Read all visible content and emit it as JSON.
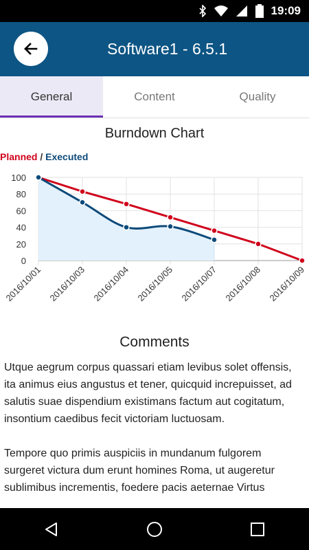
{
  "status_bar": {
    "time": "19:09",
    "icons": [
      "bluetooth-icon",
      "wifi-icon",
      "signal-icon",
      "battery-icon"
    ]
  },
  "app_bar": {
    "title": "Software1 - 6.5.1",
    "back_icon": "arrow-left-icon",
    "color": "#0d5584"
  },
  "tabs": [
    {
      "label": "General",
      "active": true
    },
    {
      "label": "Content",
      "active": false
    },
    {
      "label": "Quality",
      "active": false
    }
  ],
  "chart_data": {
    "type": "line",
    "title": "Burndown Chart",
    "x": [
      "2016/10/01",
      "2016/10/03",
      "2016/10/04",
      "2016/10/05",
      "2016/10/07",
      "2016/10/08",
      "2016/10/09"
    ],
    "series": [
      {
        "name": "Planned",
        "color": "#d0021b",
        "values": [
          100,
          83,
          68,
          52,
          36,
          20,
          0
        ]
      },
      {
        "name": "Executed",
        "color": "#0d4a7a",
        "values": [
          100,
          70,
          40,
          41,
          25,
          null,
          null
        ]
      }
    ],
    "ylim": [
      0,
      100
    ],
    "yticks": [
      0,
      20,
      40,
      60,
      80,
      100
    ],
    "grid": true,
    "legend": {
      "planned": "Planned",
      "separator": " / ",
      "executed": "Executed",
      "placement": "top-left"
    }
  },
  "comments": {
    "title": "Comments",
    "paragraphs": [
      "Utque aegrum corpus quassari etiam levibus solet offensis, ita animus eius angustus et tener, quicquid increpuisset, ad salutis suae dispendium existimans factum aut cogitatum, insontium caedibus fecit victoriam luctuosam.",
      "Tempore quo primis auspiciis in mundanum fulgorem surgeret victura dum erunt homines Roma, ut augeretur sublimibus incrementis, foedere pacis aeternae Virtus"
    ]
  },
  "nav_bar": {
    "icons": [
      "back-triangle-icon",
      "home-circle-icon",
      "recents-square-icon"
    ]
  }
}
